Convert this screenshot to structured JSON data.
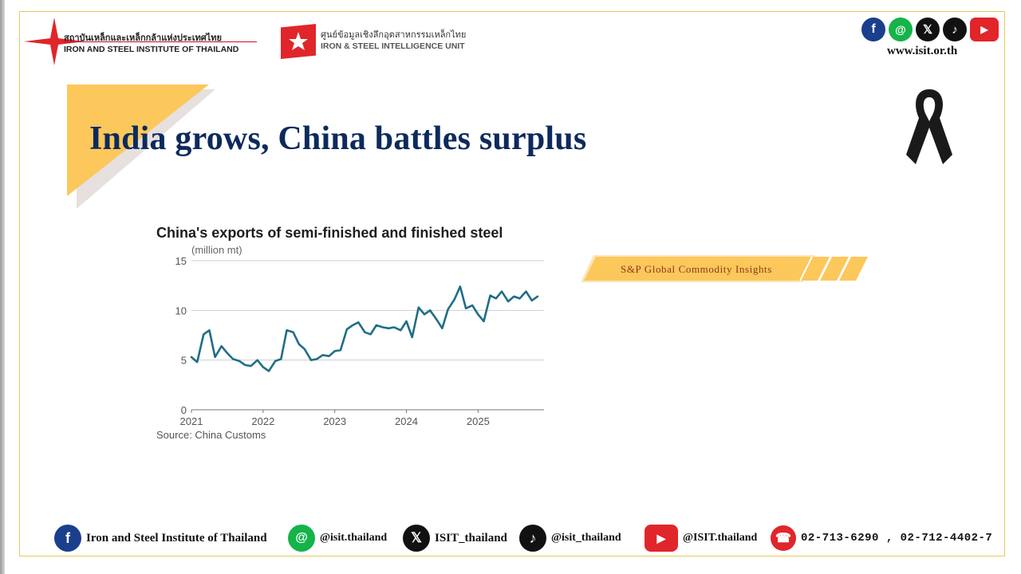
{
  "header": {
    "isit_logo": {
      "thai": "สถาบันเหล็กและเหล็กกล้าแห่งประเทศไทย",
      "english": "IRON AND STEEL INSTITUTE OF THAILAND"
    },
    "isiu_logo": {
      "thai": "ศูนย์ข้อมูลเชิงลึกอุตสาหกรรมเหล็กไทย",
      "english": "IRON & STEEL INTELLIGENCE UNIT"
    },
    "social_icons": [
      "facebook-icon",
      "line-icon",
      "x-icon",
      "tiktok-icon",
      "youtube-icon"
    ],
    "website": "www.isit.or.th"
  },
  "slide": {
    "title": "India grows, China battles surplus",
    "source_banner": "S&P Global Commodity Insights"
  },
  "chart_data": {
    "type": "line",
    "title": "China's exports of semi-finished and finished steel",
    "unit_label": "(million mt)",
    "source": "Source: China Customs",
    "ylim": [
      0,
      15
    ],
    "yticks": [
      0,
      5,
      10,
      15
    ],
    "xlim": [
      2021.0,
      2025.92
    ],
    "xticks": [
      2021,
      2022,
      2023,
      2024,
      2025
    ],
    "grid": true,
    "color": "#1f6e86",
    "series": [
      {
        "x": [
          2021.0,
          2021.08,
          2021.17,
          2021.25,
          2021.33,
          2021.42,
          2021.5,
          2021.58,
          2021.67,
          2021.75,
          2021.83,
          2021.92,
          2022.0,
          2022.08,
          2022.17,
          2022.25,
          2022.33,
          2022.42,
          2022.5,
          2022.58,
          2022.67,
          2022.75,
          2022.83,
          2022.92,
          2023.0,
          2023.08,
          2023.17,
          2023.25,
          2023.33,
          2023.42,
          2023.5,
          2023.58,
          2023.67,
          2023.75,
          2023.83,
          2023.92,
          2024.0,
          2024.08,
          2024.17,
          2024.25,
          2024.33,
          2024.42,
          2024.5,
          2024.58,
          2024.67,
          2024.75,
          2024.83,
          2024.92,
          2025.0,
          2025.08,
          2025.17,
          2025.25,
          2025.33,
          2025.42,
          2025.5,
          2025.58,
          2025.67,
          2025.75,
          2025.83
        ],
        "y": [
          5.3,
          4.8,
          7.6,
          8.0,
          5.3,
          6.4,
          5.7,
          5.1,
          4.9,
          4.5,
          4.4,
          5.0,
          4.3,
          3.9,
          4.9,
          5.1,
          8.0,
          7.8,
          6.6,
          6.1,
          5.0,
          5.1,
          5.5,
          5.4,
          5.9,
          6.0,
          8.1,
          8.5,
          8.8,
          7.8,
          7.6,
          8.5,
          8.3,
          8.2,
          8.3,
          8.0,
          8.9,
          7.3,
          10.3,
          9.6,
          10.0,
          9.1,
          8.2,
          10.1,
          11.1,
          12.4,
          10.2,
          10.5,
          9.6,
          8.9,
          11.5,
          11.2,
          11.9,
          10.9,
          11.4,
          11.2,
          11.9,
          11.0,
          11.4
        ]
      }
    ]
  },
  "footer": {
    "facebook": "Iron and Steel Institute of Thailand",
    "line": "@isit.thailand",
    "x": "ISIT_thailand",
    "tiktok": "@isit_thailand",
    "youtube": "@ISIT.thailand",
    "phone": "02-713-6290 , 02-712-4402-7"
  }
}
